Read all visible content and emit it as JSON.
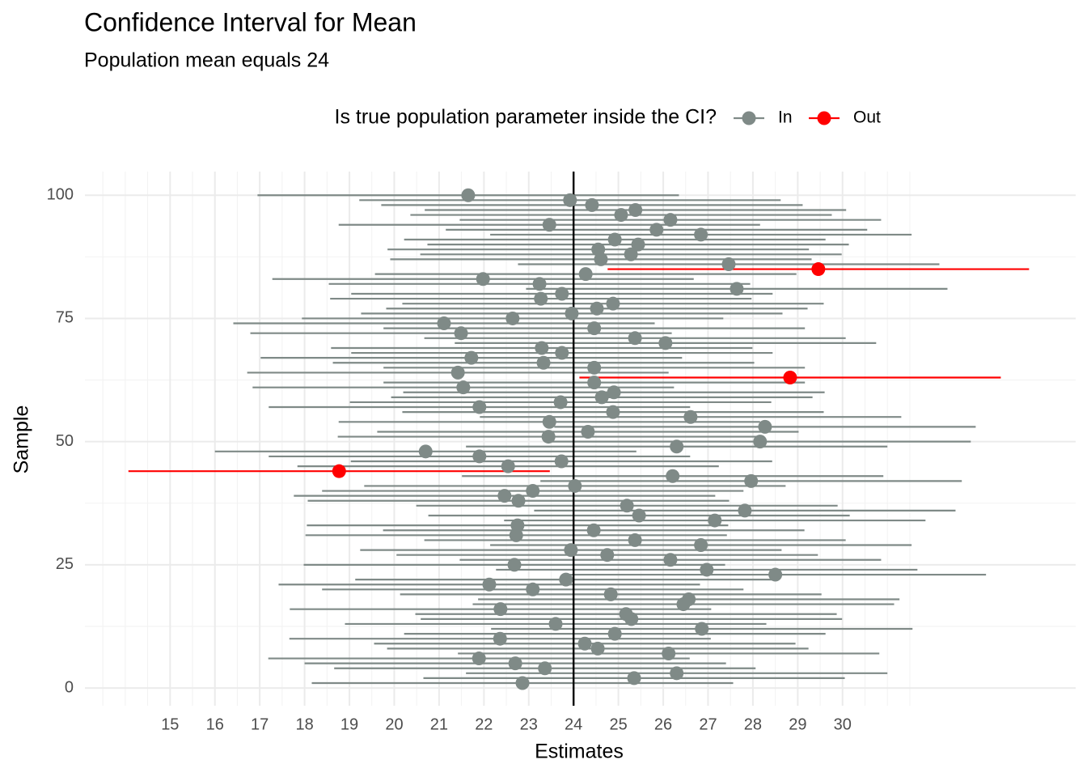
{
  "chart_data": {
    "type": "interval",
    "title": "Confidence Interval for Mean",
    "subtitle": "Population mean equals 24",
    "x_label": "Estimates",
    "y_label": "Sample",
    "legend_title": "Is true population parameter inside the CI?",
    "reference_value": 24,
    "margin_of_error": 4.7,
    "xlim": [
      13.1,
      35.2
    ],
    "ylim": [
      -3.6,
      104.8
    ],
    "xticks": [
      15,
      16,
      17,
      18,
      19,
      20,
      21,
      22,
      23,
      24,
      25,
      26,
      27,
      28,
      29,
      30
    ],
    "yticks": [
      0,
      25,
      50,
      75,
      100
    ],
    "grid": true,
    "series": [
      {
        "name": "In",
        "color": "#7f8a87",
        "y": [
          1,
          2,
          3,
          4,
          5,
          6,
          7,
          8,
          9,
          10,
          11,
          12,
          13,
          14,
          15,
          16,
          17,
          18,
          19,
          20,
          21,
          22,
          23,
          24,
          25,
          26,
          27,
          28,
          29,
          30,
          31,
          32,
          33,
          34,
          35,
          36,
          37,
          38,
          39,
          40,
          41,
          42,
          43,
          45,
          46,
          47,
          48,
          49,
          50,
          51,
          52,
          53,
          54,
          55,
          56,
          57,
          58,
          59,
          60,
          61,
          62,
          64,
          65,
          66,
          67,
          68,
          69,
          70,
          71,
          72,
          73,
          74,
          75,
          76,
          77,
          78,
          79,
          80,
          81,
          82,
          83,
          84,
          86,
          87,
          88,
          89,
          90,
          91,
          92,
          93,
          94,
          95,
          96,
          97,
          98,
          99,
          100
        ],
        "values": [
          22.86,
          25.35,
          26.3,
          23.36,
          22.7,
          21.89,
          26.12,
          24.54,
          24.25,
          22.36,
          24.92,
          26.86,
          23.6,
          25.29,
          25.17,
          22.37,
          26.45,
          26.57,
          24.83,
          23.09,
          22.12,
          23.83,
          28.5,
          26.97,
          22.68,
          26.16,
          24.75,
          23.94,
          26.84,
          25.37,
          22.72,
          24.45,
          22.75,
          27.15,
          25.46,
          27.82,
          25.19,
          22.77,
          22.46,
          23.09,
          24.03,
          27.96,
          26.21,
          22.54,
          23.73,
          21.9,
          20.7,
          26.3,
          28.16,
          23.44,
          24.32,
          28.27,
          23.46,
          26.61,
          24.88,
          21.9,
          23.71,
          24.63,
          24.9,
          21.54,
          24.46,
          21.42,
          24.46,
          23.33,
          21.72,
          23.74,
          23.29,
          26.05,
          25.37,
          21.49,
          24.46,
          21.11,
          22.64,
          23.96,
          24.52,
          24.88,
          23.27,
          23.74,
          27.64,
          23.24,
          21.98,
          24.27,
          27.46,
          24.61,
          25.28,
          24.55,
          25.44,
          24.92,
          26.84,
          25.85,
          23.46,
          26.16,
          25.06,
          25.38,
          24.41,
          23.92,
          21.65
        ]
      },
      {
        "name": "Out",
        "color": "#ff0000",
        "y": [
          44,
          63,
          85
        ],
        "values": [
          18.77,
          28.83,
          29.46
        ]
      }
    ]
  }
}
